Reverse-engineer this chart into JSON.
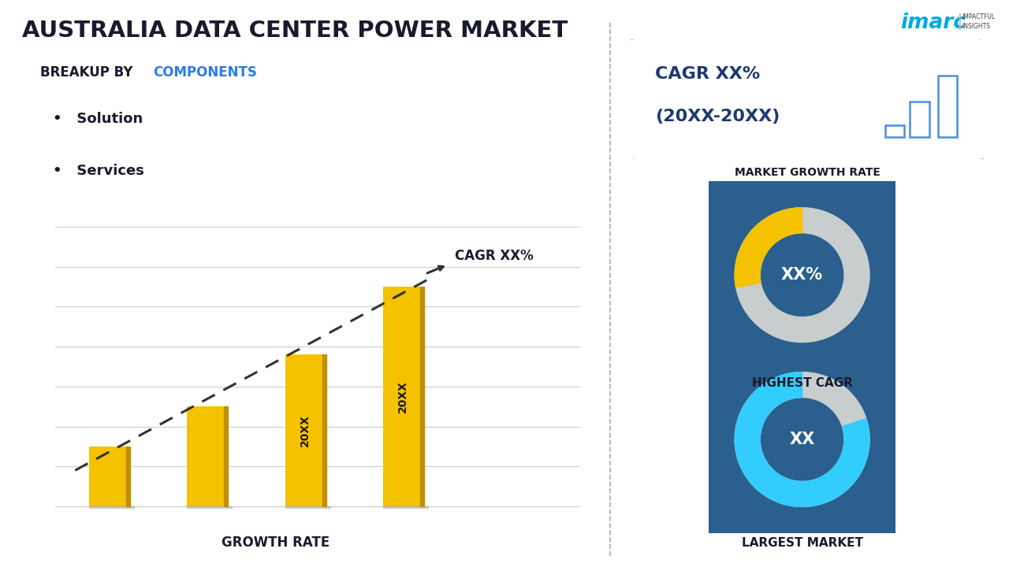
{
  "title": "AUSTRALIA DATA CENTER POWER MARKET",
  "subtitle_prefix": "BREAKUP BY ",
  "subtitle_highlight": "COMPONENTS",
  "legend_items": [
    "Solution",
    "Services"
  ],
  "bar_values": [
    1.5,
    2.5,
    3.8,
    5.5
  ],
  "bar_labels": [
    "",
    "",
    "20XX",
    "20XX"
  ],
  "bar_color": "#F5C200",
  "bar_color_dark": "#C09000",
  "cagr_label": "CAGR XX%",
  "xlabel": "GROWTH RATE",
  "right_box_text_line1": "CAGR XX%",
  "right_box_text_line2": "(20XX-20XX)",
  "right_box_sublabel": "MARKET GROWTH RATE",
  "donut1_label": "XX%",
  "donut1_sublabel": "HIGHEST CAGR",
  "donut1_color_main": "#F5C200",
  "donut1_color_bg": "#C8CECE",
  "donut1_bg_color": "#2B5F8E",
  "donut2_label": "XX",
  "donut2_sublabel": "LARGEST MARKET",
  "donut2_color_main": "#33CCFF",
  "donut2_color_bg": "#C8CECE",
  "donut2_bg_color": "#2B5F8E",
  "bg_color": "#FFFFFF",
  "divider_color": "#AAAAAA",
  "text_color_dark": "#1a1a2e",
  "text_color_blue": "#2B7BE8",
  "cagr_box_text_color": "#1E3A6E",
  "icon_color": "#4A90D9"
}
